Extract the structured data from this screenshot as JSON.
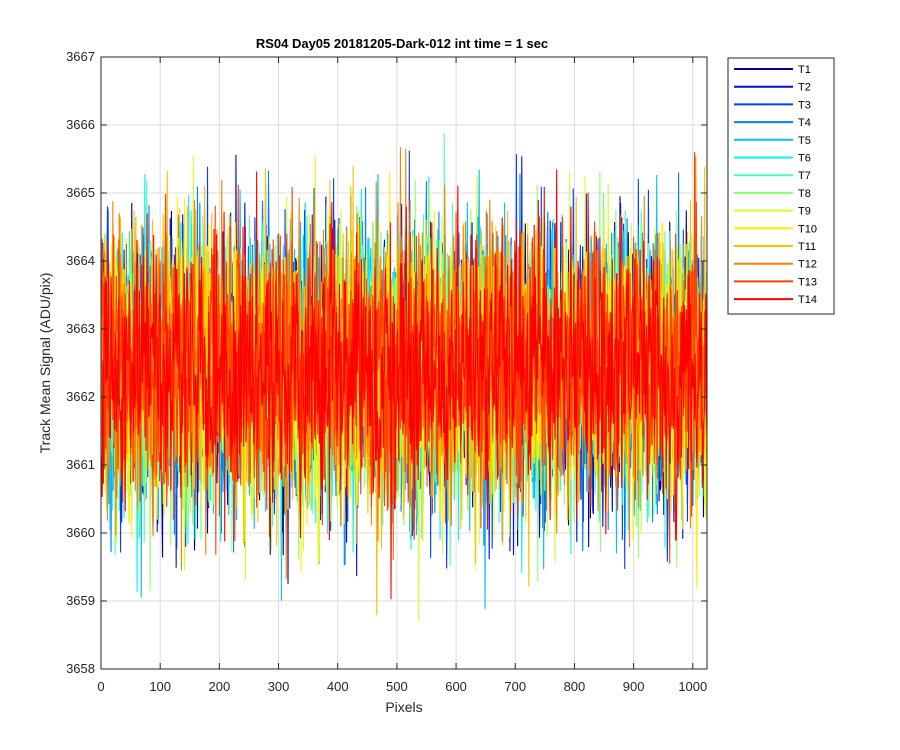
{
  "chart_data": {
    "type": "line",
    "title": "RS04 Day05 20181205-Dark-012 int time = 1 sec",
    "xlabel": "Pixels",
    "ylabel": "Track Mean Signal (ADU/pix)",
    "xlim": [
      0,
      1024
    ],
    "ylim": [
      3658,
      3667
    ],
    "xticks": [
      0,
      100,
      200,
      300,
      400,
      500,
      600,
      700,
      800,
      900,
      1000
    ],
    "yticks": [
      3658,
      3659,
      3660,
      3661,
      3662,
      3663,
      3664,
      3665,
      3666,
      3667
    ],
    "grid": true,
    "legend_position": "outside-top-right",
    "x_range": [
      1,
      1024
    ],
    "noise_note": "14 overlapping noisy series, mean ~3662.4, spread ~3659-3666",
    "series": [
      {
        "name": "T1",
        "color": "#00008f",
        "mean": 3662.4,
        "std": 1.0
      },
      {
        "name": "T2",
        "color": "#0010d0",
        "mean": 3662.4,
        "std": 1.0
      },
      {
        "name": "T3",
        "color": "#0040ff",
        "mean": 3662.4,
        "std": 1.0
      },
      {
        "name": "T4",
        "color": "#0080ff",
        "mean": 3662.4,
        "std": 1.0
      },
      {
        "name": "T5",
        "color": "#00bfff",
        "mean": 3662.4,
        "std": 1.0
      },
      {
        "name": "T6",
        "color": "#10f0ef",
        "mean": 3662.4,
        "std": 1.0
      },
      {
        "name": "T7",
        "color": "#50ffaf",
        "mean": 3662.4,
        "std": 1.0
      },
      {
        "name": "T8",
        "color": "#8fff70",
        "mean": 3662.4,
        "std": 1.0
      },
      {
        "name": "T9",
        "color": "#cfff30",
        "mean": 3662.4,
        "std": 1.0
      },
      {
        "name": "T10",
        "color": "#ffef00",
        "mean": 3662.4,
        "std": 1.0
      },
      {
        "name": "T11",
        "color": "#ffbf00",
        "mean": 3662.4,
        "std": 1.0
      },
      {
        "name": "T12",
        "color": "#ff8000",
        "mean": 3662.4,
        "std": 1.0
      },
      {
        "name": "T13",
        "color": "#ff4000",
        "mean": 3662.4,
        "std": 1.0
      },
      {
        "name": "T14",
        "color": "#ff0000",
        "mean": 3662.4,
        "std": 0.95
      }
    ]
  }
}
